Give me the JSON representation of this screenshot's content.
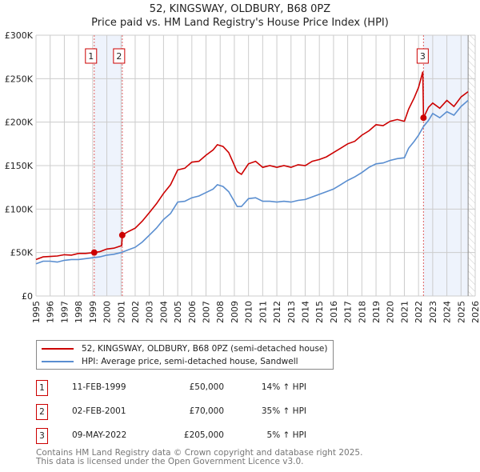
{
  "title_line1": "52, KINGSWAY, OLDBURY, B68 0PZ",
  "title_line2": "Price paid vs. HM Land Registry's House Price Index (HPI)",
  "chart_data": {
    "type": "line",
    "title": "52, KINGSWAY, OLDBURY, B68 0PZ — Price paid vs. HM Land Registry's House Price Index (HPI)",
    "xlabel": "",
    "ylabel": "",
    "xlim": [
      1995,
      2026
    ],
    "ylim": [
      0,
      300000
    ],
    "x_ticks": [
      "1995",
      "1996",
      "1997",
      "1998",
      "1999",
      "2000",
      "2001",
      "2002",
      "2003",
      "2004",
      "2005",
      "2006",
      "2007",
      "2008",
      "2009",
      "2010",
      "2011",
      "2012",
      "2013",
      "2014",
      "2015",
      "2016",
      "2017",
      "2018",
      "2019",
      "2020",
      "2021",
      "2022",
      "2023",
      "2024",
      "2025",
      "2026"
    ],
    "y_ticks": [
      {
        "v": 0,
        "label": "£0"
      },
      {
        "v": 50000,
        "label": "£50K"
      },
      {
        "v": 100000,
        "label": "£100K"
      },
      {
        "v": 150000,
        "label": "£150K"
      },
      {
        "v": 200000,
        "label": "£200K"
      },
      {
        "v": 250000,
        "label": "£250K"
      },
      {
        "v": 300000,
        "label": "£300K"
      }
    ],
    "grid": true,
    "shaded_ranges": [
      [
        1999.11,
        2001.09
      ],
      [
        2022.35,
        2025.5
      ]
    ],
    "hatched_from": 2025.5,
    "series": [
      {
        "name": "52, KINGSWAY, OLDBURY, B68 0PZ (semi-detached house)",
        "color": "#cc0000",
        "x": [
          1995,
          1995.5,
          1996,
          1996.5,
          1997,
          1997.5,
          1998,
          1998.5,
          1999.11,
          1999.5,
          2000,
          2000.5,
          2001.05,
          2001.09,
          2001.5,
          2002,
          2002.5,
          2003,
          2003.5,
          2004,
          2004.5,
          2005,
          2005.5,
          2006,
          2006.5,
          2007,
          2007.5,
          2007.8,
          2008.2,
          2008.6,
          2009.2,
          2009.5,
          2010,
          2010.5,
          2011,
          2011.5,
          2012,
          2012.5,
          2013,
          2013.5,
          2014,
          2014.5,
          2015,
          2015.5,
          2016,
          2016.5,
          2017,
          2017.5,
          2018,
          2018.5,
          2019,
          2019.5,
          2020,
          2020.5,
          2021,
          2021.3,
          2021.7,
          2022,
          2022.3,
          2022.35,
          2022.7,
          2023,
          2023.5,
          2024,
          2024.5,
          2025,
          2025.5
        ],
        "y": [
          42000,
          45000,
          45500,
          46000,
          47500,
          47000,
          49000,
          49000,
          50000,
          51000,
          54000,
          55000,
          58000,
          70000,
          74000,
          78000,
          86000,
          96000,
          106000,
          118000,
          128000,
          145000,
          147000,
          154000,
          155000,
          162000,
          168000,
          174000,
          172000,
          165000,
          143000,
          140000,
          152000,
          155000,
          148000,
          150000,
          148000,
          150000,
          148000,
          151000,
          150000,
          155000,
          157000,
          160000,
          165000,
          170000,
          175000,
          178000,
          185000,
          190000,
          197000,
          196000,
          201000,
          203000,
          201000,
          215000,
          228000,
          240000,
          258000,
          205000,
          217000,
          222000,
          216000,
          225000,
          218000,
          229000,
          235000
        ]
      },
      {
        "name": "HPI: Average price, semi-detached house, Sandwell",
        "color": "#5a8ed0",
        "x": [
          1995,
          1995.5,
          1996,
          1996.5,
          1997,
          1997.5,
          1998,
          1998.5,
          1999,
          1999.5,
          2000,
          2000.5,
          2001,
          2001.5,
          2002,
          2002.5,
          2003,
          2003.5,
          2004,
          2004.5,
          2005,
          2005.5,
          2006,
          2006.5,
          2007,
          2007.5,
          2007.8,
          2008.2,
          2008.6,
          2009.2,
          2009.5,
          2010,
          2010.5,
          2011,
          2011.5,
          2012,
          2012.5,
          2013,
          2013.5,
          2014,
          2014.5,
          2015,
          2015.5,
          2016,
          2016.5,
          2017,
          2017.5,
          2018,
          2018.5,
          2019,
          2019.5,
          2020,
          2020.5,
          2021,
          2021.3,
          2021.7,
          2022,
          2022.35,
          2022.7,
          2023,
          2023.5,
          2024,
          2024.5,
          2025,
          2025.5
        ],
        "y": [
          37000,
          40000,
          40000,
          39000,
          41000,
          42000,
          42000,
          43000,
          44000,
          45000,
          47000,
          48000,
          50000,
          53000,
          56000,
          62000,
          70000,
          78000,
          88000,
          95000,
          108000,
          109000,
          113000,
          115000,
          119000,
          123000,
          128000,
          126000,
          120000,
          103000,
          103000,
          112000,
          113000,
          109000,
          109000,
          108000,
          109000,
          108000,
          110000,
          111000,
          114000,
          117000,
          120000,
          123000,
          128000,
          133000,
          137000,
          142000,
          148000,
          152000,
          153000,
          156000,
          158000,
          159000,
          170000,
          178000,
          185000,
          195000,
          202000,
          210000,
          205000,
          212000,
          208000,
          218000,
          225000
        ]
      }
    ],
    "sales": [
      {
        "label": "1",
        "x": 1999.11,
        "y": 50000
      },
      {
        "label": "2",
        "x": 2001.09,
        "y": 70000
      },
      {
        "label": "3",
        "x": 2022.35,
        "y": 205000
      }
    ]
  },
  "legend": [
    {
      "label": "52, KINGSWAY, OLDBURY, B68 0PZ (semi-detached house)",
      "color": "#cc0000"
    },
    {
      "label": "HPI: Average price, semi-detached house, Sandwell",
      "color": "#5a8ed0"
    }
  ],
  "transactions": [
    {
      "num": "1",
      "date": "11-FEB-1999",
      "price": "£50,000",
      "hpi": "14% ↑ HPI"
    },
    {
      "num": "2",
      "date": "02-FEB-2001",
      "price": "£70,000",
      "hpi": "35% ↑ HPI"
    },
    {
      "num": "3",
      "date": "09-MAY-2022",
      "price": "£205,000",
      "hpi": "5% ↑ HPI"
    }
  ],
  "footer": {
    "line1": "Contains HM Land Registry data © Crown copyright and database right 2025.",
    "line2": "This data is licensed under the Open Government Licence v3.0."
  }
}
